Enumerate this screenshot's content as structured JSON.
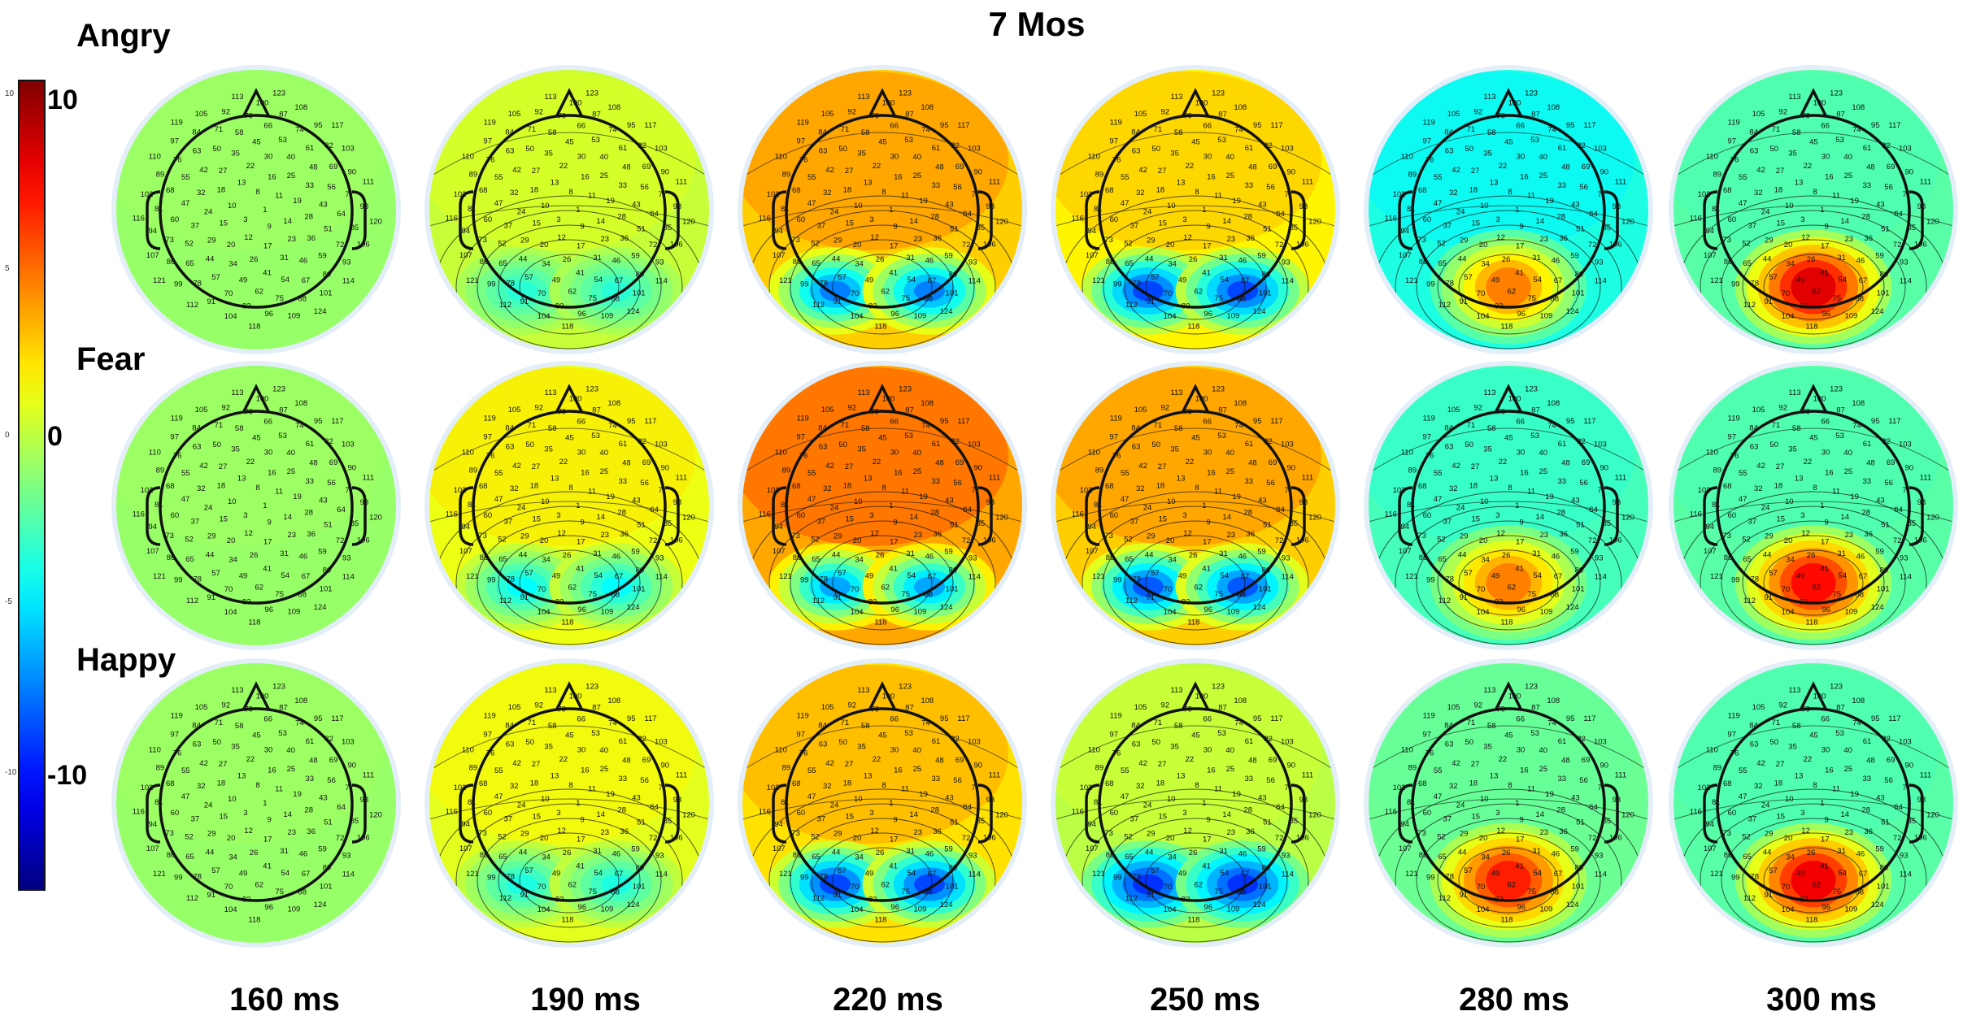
{
  "title": "7 Mos",
  "conditions": [
    "Angry",
    "Fear",
    "Happy"
  ],
  "times": [
    "160 ms",
    "190 ms",
    "220 ms",
    "250 ms",
    "280 ms",
    "300 ms"
  ],
  "colorbar": {
    "major_labels": [
      "10",
      "0",
      "-10"
    ],
    "minor_labels": [
      "10",
      "5",
      "0",
      "-5",
      "-10"
    ],
    "colormap": "jet",
    "range": [
      -13,
      13
    ]
  },
  "electrode_labels": [
    "1",
    "3",
    "8",
    "9",
    "10",
    "11",
    "12",
    "13",
    "14",
    "15",
    "16",
    "17",
    "18",
    "19",
    "20",
    "22",
    "23",
    "24",
    "25",
    "26",
    "27",
    "28",
    "29",
    "30",
    "31",
    "32",
    "33",
    "34",
    "35",
    "36",
    "37",
    "40",
    "41",
    "42",
    "43",
    "44",
    "45",
    "46",
    "47",
    "48",
    "49",
    "50",
    "51",
    "52",
    "53",
    "54",
    "55",
    "56",
    "57",
    "58",
    "59",
    "60",
    "61",
    "62",
    "63",
    "64",
    "65",
    "66",
    "67",
    "68",
    "69",
    "70",
    "71",
    "72",
    "73",
    "74",
    "75",
    "76",
    "77",
    "78",
    "79",
    "80",
    "81",
    "82",
    "83",
    "84",
    "85",
    "86",
    "87",
    "88",
    "89",
    "90",
    "91",
    "92",
    "93",
    "94",
    "95",
    "96",
    "97",
    "98",
    "99",
    "100",
    "101",
    "102",
    "103",
    "104",
    "105",
    "106",
    "107",
    "108",
    "109",
    "110",
    "111",
    "112",
    "113",
    "114",
    "116",
    "117",
    "118",
    "119",
    "120",
    "121",
    "123",
    "124"
  ],
  "maps": [
    [
      {
        "base": 0.6,
        "posterior": 0.0
      },
      {
        "base": 1.8,
        "posterior": -4.0
      },
      {
        "base": 4.5,
        "posterior": -11.0
      },
      {
        "base": 3.5,
        "posterior": -11.5
      },
      {
        "base": -2.5,
        "posterior": 9.0
      },
      {
        "base": -1.0,
        "posterior": 11.5
      }
    ],
    [
      {
        "base": 0.6,
        "posterior": 0.0
      },
      {
        "base": 2.8,
        "posterior": -6.0
      },
      {
        "base": 5.5,
        "posterior": -11.0
      },
      {
        "base": 4.5,
        "posterior": -12.0
      },
      {
        "base": -1.5,
        "posterior": 8.0
      },
      {
        "base": -1.0,
        "posterior": 10.5
      }
    ],
    [
      {
        "base": 0.6,
        "posterior": 0.0
      },
      {
        "base": 2.5,
        "posterior": -5.0
      },
      {
        "base": 4.0,
        "posterior": -12.0
      },
      {
        "base": 1.5,
        "posterior": -10.0
      },
      {
        "base": -0.5,
        "posterior": 9.5
      },
      {
        "base": -1.0,
        "posterior": 11.0
      }
    ]
  ]
}
